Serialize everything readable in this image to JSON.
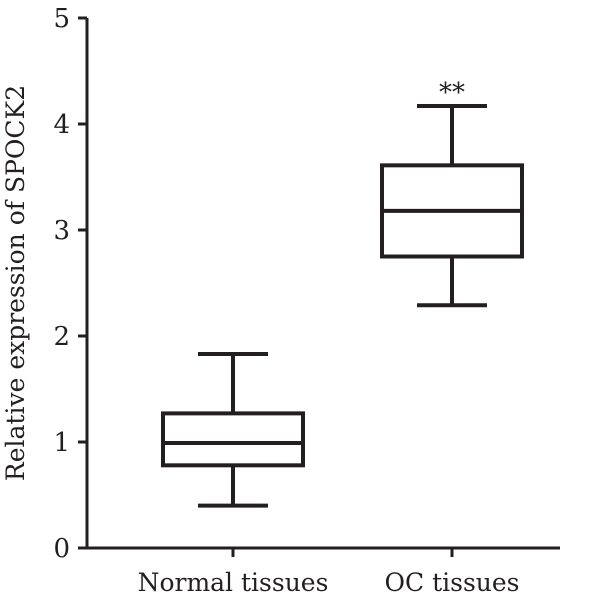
{
  "chart_data": {
    "type": "box",
    "title": "",
    "xlabel": "",
    "ylabel": "Relative expression of SPOCK2",
    "ylim": [
      0,
      5
    ],
    "yticks": [
      "0",
      "1",
      "2",
      "3",
      "4",
      "5"
    ],
    "grid": false,
    "categories": [
      "Normal tissues",
      "OC tissues"
    ],
    "boxes": [
      {
        "category": "Normal tissues",
        "min": 0.4,
        "q1": 0.78,
        "median": 0.99,
        "q3": 1.27,
        "max": 1.83,
        "annotation": ""
      },
      {
        "category": "OC tissues",
        "min": 2.29,
        "q1": 2.75,
        "median": 3.18,
        "q3": 3.61,
        "max": 4.17,
        "annotation": "**"
      }
    ]
  }
}
